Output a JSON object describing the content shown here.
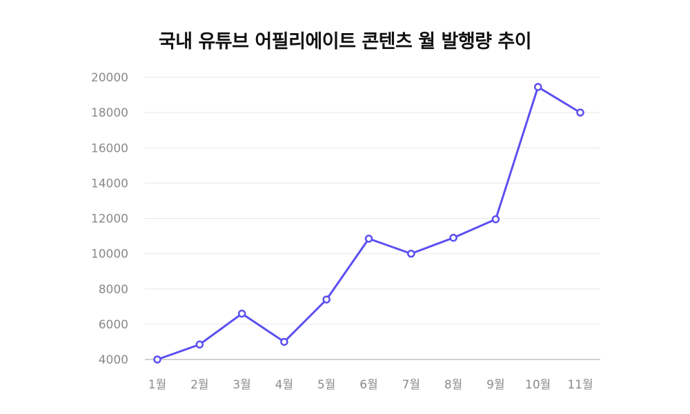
{
  "chart_data": {
    "type": "line",
    "title": "국내 유튜브 어필리에이트 콘텐츠 월 발행량 추이",
    "xlabel": "",
    "ylabel": "",
    "categories": [
      "1월",
      "2월",
      "3월",
      "4월",
      "5월",
      "6월",
      "7월",
      "8월",
      "9월",
      "10월",
      "11월"
    ],
    "series": [
      {
        "values": [
          4000,
          4850,
          6600,
          5000,
          7400,
          10850,
          10000,
          10900,
          11950,
          19450,
          18000
        ]
      }
    ],
    "ylim": [
      4000,
      20000
    ],
    "yticks": [
      "4000",
      "6000",
      "8000",
      "10000",
      "12000",
      "14000",
      "16000",
      "18000",
      "20000"
    ],
    "grid": true,
    "legend": "none",
    "colors": {
      "line": "#5b4ff0",
      "grid": "#e6e6e6",
      "axis": "#cfcfcf",
      "tick_text": "#8a8a8a"
    }
  }
}
